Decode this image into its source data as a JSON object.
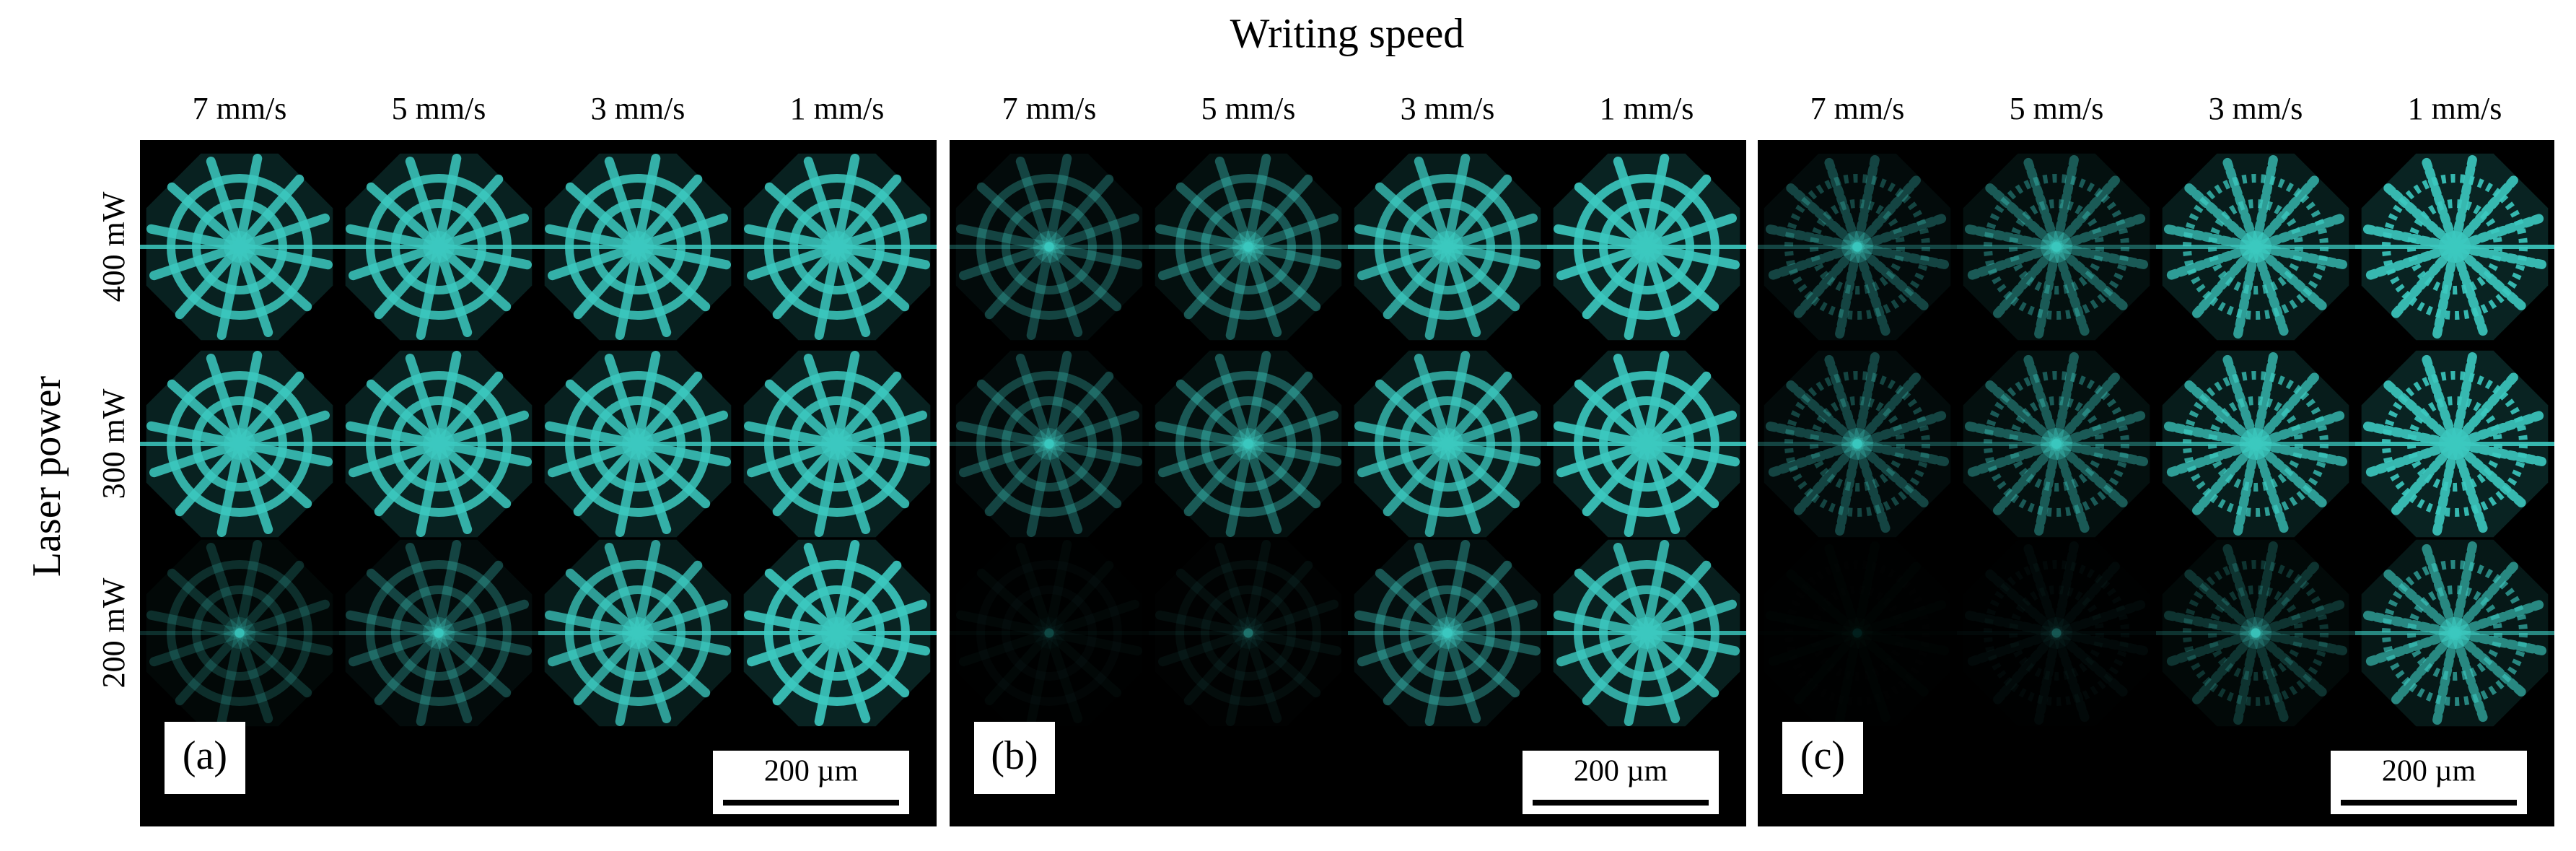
{
  "title": "Writing speed",
  "y_label": "Laser power",
  "rows": [
    "400 mW",
    "300 mW",
    "200 mW"
  ],
  "panels": [
    {
      "label": "(a)",
      "columns": [
        "7 mm/s",
        "5 mm/s",
        "3 mm/s",
        "1 mm/s"
      ],
      "scale_bar": "200 µm"
    },
    {
      "label": "(b)",
      "columns": [
        "7 mm/s",
        "5 mm/s",
        "3 mm/s",
        "1 mm/s"
      ],
      "scale_bar": "200 µm"
    },
    {
      "label": "(c)",
      "columns": [
        "7 mm/s",
        "5 mm/s",
        "3 mm/s",
        "1 mm/s"
      ],
      "scale_bar": "200 µm"
    }
  ]
}
